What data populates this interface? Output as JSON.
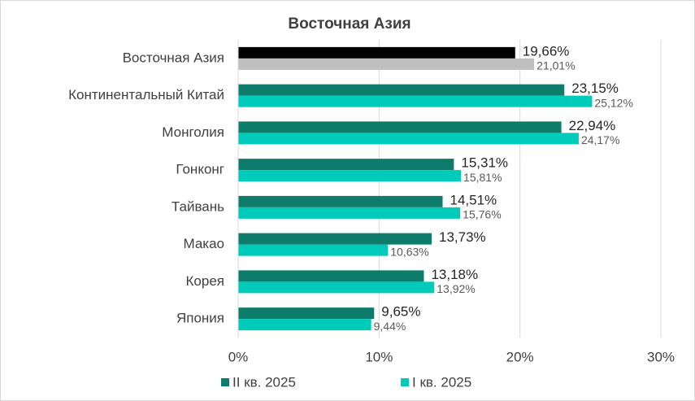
{
  "chart_data": {
    "type": "bar",
    "orientation": "horizontal",
    "title": "Восточная Азия",
    "categories": [
      "Восточная Азия",
      "Континентальный Китай",
      "Монголия",
      "Гонконг",
      "Тайвань",
      "Макао",
      "Корея",
      "Япония"
    ],
    "series": [
      {
        "name": "II кв. 2025",
        "color": "#0e7c6b",
        "colors": [
          "#000000",
          "#0e7c6b",
          "#0e7c6b",
          "#0e7c6b",
          "#0e7c6b",
          "#0e7c6b",
          "#0e7c6b",
          "#0e7c6b"
        ],
        "values": [
          19.66,
          23.15,
          22.94,
          15.31,
          14.51,
          13.73,
          13.18,
          9.65
        ],
        "value_labels": [
          "19,66%",
          "23,15%",
          "22,94%",
          "15,31%",
          "14,51%",
          "13,73%",
          "13,18%",
          "9,65%"
        ]
      },
      {
        "name": "I кв. 2025",
        "color": "#00cbbb",
        "colors": [
          "#bfbfbf",
          "#00cbbb",
          "#00cbbb",
          "#00cbbb",
          "#00cbbb",
          "#00cbbb",
          "#00cbbb",
          "#00cbbb"
        ],
        "values": [
          21.01,
          25.12,
          24.17,
          15.81,
          15.76,
          10.63,
          13.92,
          9.44
        ],
        "value_labels": [
          "21,01%",
          "25,12%",
          "24,17%",
          "15,81%",
          "15,76%",
          "10,63%",
          "13,92%",
          "9,44%"
        ]
      }
    ],
    "xlim": [
      0,
      30
    ],
    "xticks": [
      {
        "value": 0,
        "label": "0%"
      },
      {
        "value": 10,
        "label": "10%"
      },
      {
        "value": 20,
        "label": "20%"
      },
      {
        "value": 30,
        "label": "30%"
      }
    ],
    "grid": true
  }
}
